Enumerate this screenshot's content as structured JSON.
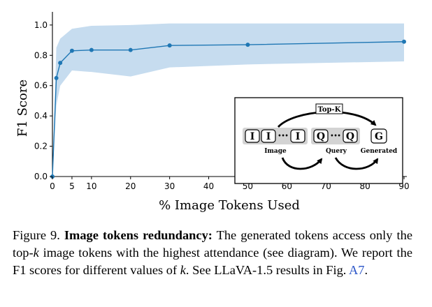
{
  "chart_data": {
    "type": "line",
    "xlabel": "% Image Tokens Used",
    "ylabel": "F1 Score",
    "xlim": [
      0,
      90
    ],
    "ylim": [
      0,
      1.05
    ],
    "xticks": [
      0,
      5,
      10,
      20,
      30,
      40,
      50,
      60,
      70,
      80,
      90
    ],
    "yticks": [
      0.0,
      0.2,
      0.4,
      0.6,
      0.8,
      1.0
    ],
    "xtick_labels": [
      "0",
      "5",
      "10",
      "20",
      "30",
      "40",
      "50",
      "60",
      "70",
      "80",
      "90"
    ],
    "ytick_labels": [
      "0.0",
      "0.2",
      "0.4",
      "0.6",
      "0.8",
      "1.0"
    ],
    "series": [
      {
        "name": "F1",
        "x": [
          0,
          1,
          2,
          5,
          10,
          20,
          30,
          50,
          90
        ],
        "y": [
          0.0,
          0.65,
          0.75,
          0.83,
          0.835,
          0.835,
          0.865,
          0.87,
          0.89
        ],
        "band_upper": [
          0.0,
          0.85,
          0.91,
          0.975,
          0.995,
          1.0,
          1.01,
          1.01,
          1.01
        ],
        "band_lower": [
          0.0,
          0.47,
          0.6,
          0.7,
          0.69,
          0.66,
          0.72,
          0.74,
          0.76
        ]
      }
    ],
    "colors": {
      "line": "#1f77b4",
      "band": "#c6dcef"
    }
  },
  "diagram": {
    "title": "Top-K",
    "image_token": "I",
    "query_token": "Q",
    "generated_token": "G",
    "ellipsis": "•••",
    "label_image": "Image",
    "label_query": "Query",
    "label_generated": "Generated"
  },
  "caption": {
    "prefix": "Figure 9. ",
    "bold_title": "Image tokens redundancy:",
    "part1": " The generated tokens access only the top-",
    "k1": "k",
    "part2": " image tokens with the highest attendance (see diagram). We report the F1 scores for different values of ",
    "k2": "k",
    "part3": ". See LLaVA-1.5 results in Fig. ",
    "ref": "A7",
    "end": "."
  }
}
